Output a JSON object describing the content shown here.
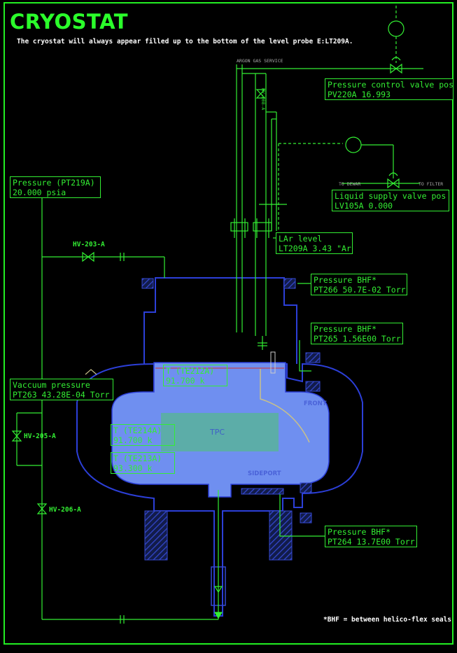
{
  "title": "CRYOSTAT",
  "subtitle": "The cryostat will always appear filled up to the bottom of the level probe E:LT209A.",
  "footnote": "*BHF = between helico-flex seals",
  "colors": {
    "line": "#33ee33",
    "vessel_outline": "#2c3fd8",
    "liquid": "#6f8ff0",
    "tpc": "#5ab0a0",
    "label_box": "#33ee33"
  },
  "readouts": {
    "pv220a": {
      "label": "Pressure control valve pos",
      "value": "PV220A 16.993"
    },
    "lv105a": {
      "label": "Liquid supply valve pos",
      "value": "LV105A 0.000"
    },
    "pt219a": {
      "label": "Pressure (PT219A)",
      "value": "20.000 psia"
    },
    "lt209a": {
      "label": "LAr level",
      "value": "LT209A 3.43 \"Ar"
    },
    "pt266": {
      "label": "Pressure BHF*",
      "value": "PT266 50.7E-02 Torr"
    },
    "pt265": {
      "label": "Pressure BHF*",
      "value": "PT265 1.56E00 Torr"
    },
    "te212a": {
      "label": "T (TE212A)",
      "value": "91.700 k"
    },
    "pt263": {
      "label": "Vaccuum  pressure",
      "value": "PT263 43.28E-04 Torr"
    },
    "te214a": {
      "label": "T (TE214A)",
      "value": "91.700 k"
    },
    "te213a": {
      "label": "T (TE213A)",
      "value": "93.300 k"
    },
    "pt264": {
      "label": "Pressure BHF*",
      "value": "PT264 13.7E00 Torr"
    }
  },
  "valves": {
    "hv203a": "HV-203-A",
    "hv205a": "HV-205-A",
    "hv206a": "HV-206-A",
    "hv208a": "HV-208-A"
  },
  "small_labels": {
    "gas_service": "ARGON GAS SERVICE",
    "to_dewar": "TO DEWAR",
    "to_filter": "TO FILTER"
  },
  "vessel_labels": {
    "tpc": "TPC",
    "front": "FRONT",
    "sideport": "SIDEPORT"
  }
}
